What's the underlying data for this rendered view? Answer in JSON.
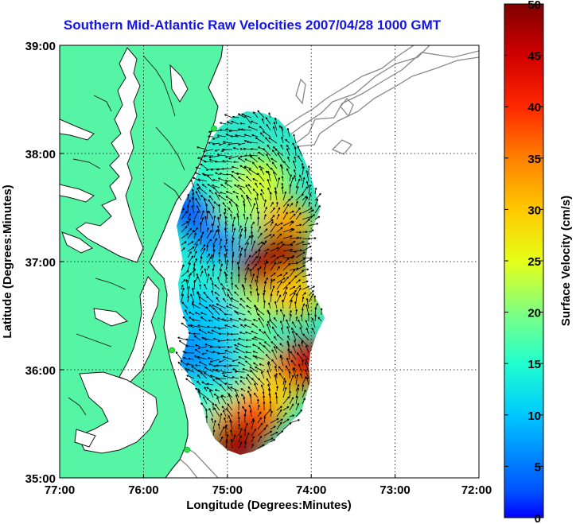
{
  "figure": {
    "title": "Southern Mid-Atlantic Raw Velocities 2007/04/28 1000 GMT",
    "xlabel": "Longitude (Degrees:Minutes)",
    "ylabel": "Latitude (Degrees:Minutes)",
    "colorbar_label": "Surface Velocity (cm/s)"
  },
  "axes": {
    "x_ticks": [
      "77:00",
      "76:00",
      "75:00",
      "74:00",
      "73:00",
      "72:00"
    ],
    "y_ticks": [
      "39:00",
      "38:00",
      "37:00",
      "36:00",
      "35:00"
    ],
    "colorbar_ticks": [
      "50",
      "45",
      "40",
      "35",
      "30",
      "25",
      "20",
      "15",
      "10",
      "5",
      "0"
    ],
    "grid": "dotted"
  },
  "colors": {
    "land": "#55f5a5",
    "land_outline": "#1a1a1a",
    "water": "#ffffff",
    "bathymetry": "#888888",
    "title": "#1414e6",
    "vectors": "#000000",
    "stations": "#35e035"
  },
  "chart_data": {
    "type": "heatmap",
    "title": "Southern Mid-Atlantic Raw Velocities 2007/04/28 1000 GMT",
    "xlabel": "Longitude (Degrees:Minutes)",
    "ylabel": "Latitude (Degrees:Minutes)",
    "colorbar_label": "Surface Velocity (cm/s)",
    "xlim": [
      -77,
      -72
    ],
    "ylim": [
      35,
      39
    ],
    "colorbar_range": [
      0,
      50
    ],
    "colormap": "jet",
    "stations": [
      {
        "lon": -75.16,
        "lat": 38.23
      },
      {
        "lon": -75.66,
        "lat": 36.18
      },
      {
        "lon": -75.48,
        "lat": 35.26
      }
    ],
    "velocity_cells": [
      {
        "lon": -75.15,
        "lat": 37.25,
        "speed": 6
      },
      {
        "lon": -75.45,
        "lat": 37.55,
        "speed": 4
      },
      {
        "lon": -75.15,
        "lat": 37.8,
        "speed": 16
      },
      {
        "lon": -74.85,
        "lat": 37.5,
        "speed": 20
      },
      {
        "lon": -74.6,
        "lat": 37.75,
        "speed": 24
      },
      {
        "lon": -74.3,
        "lat": 37.35,
        "speed": 32
      },
      {
        "lon": -74.35,
        "lat": 37.05,
        "speed": 49
      },
      {
        "lon": -74.55,
        "lat": 36.9,
        "speed": 47
      },
      {
        "lon": -74.2,
        "lat": 36.7,
        "speed": 30
      },
      {
        "lon": -74.8,
        "lat": 36.55,
        "speed": 22
      },
      {
        "lon": -75.1,
        "lat": 36.45,
        "speed": 12
      },
      {
        "lon": -75.35,
        "lat": 36.55,
        "speed": 10
      },
      {
        "lon": -75.5,
        "lat": 36.9,
        "speed": 14
      },
      {
        "lon": -75.45,
        "lat": 36.15,
        "speed": 7
      },
      {
        "lon": -75.0,
        "lat": 36.05,
        "speed": 9
      },
      {
        "lon": -74.6,
        "lat": 36.1,
        "speed": 18
      },
      {
        "lon": -74.3,
        "lat": 35.95,
        "speed": 35
      },
      {
        "lon": -74.1,
        "lat": 36.05,
        "speed": 45
      },
      {
        "lon": -75.2,
        "lat": 35.7,
        "speed": 14
      },
      {
        "lon": -74.85,
        "lat": 35.7,
        "speed": 18
      },
      {
        "lon": -74.5,
        "lat": 35.75,
        "speed": 28
      },
      {
        "lon": -74.95,
        "lat": 35.45,
        "speed": 30
      },
      {
        "lon": -74.7,
        "lat": 35.55,
        "speed": 38
      },
      {
        "lon": -74.9,
        "lat": 35.32,
        "speed": 48
      }
    ]
  }
}
